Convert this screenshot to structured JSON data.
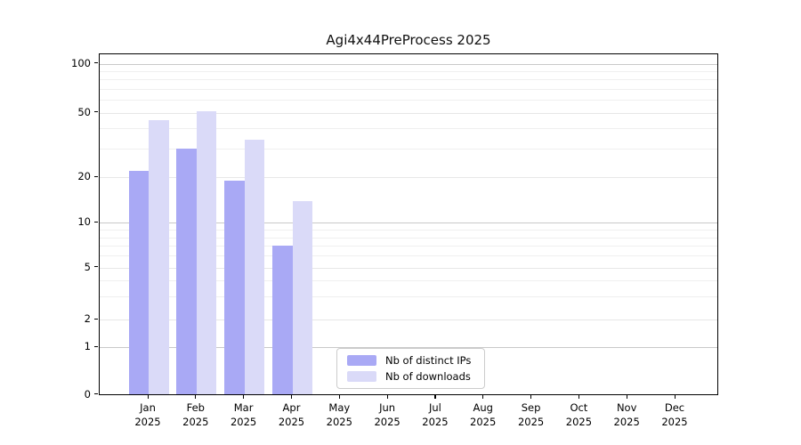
{
  "chart": {
    "title": "Agi4x44PreProcess 2025"
  },
  "chart_data": {
    "type": "bar",
    "title": "Agi4x44PreProcess 2025",
    "categories": [
      "Jan",
      "Feb",
      "Mar",
      "Apr",
      "May",
      "Jun",
      "Jul",
      "Aug",
      "Sep",
      "Oct",
      "Nov",
      "Dec"
    ],
    "year_label": "2025",
    "series": [
      {
        "name": "Nb of distinct IPs",
        "color": "#a9a9f5",
        "values": [
          22,
          30,
          19,
          7,
          0,
          0,
          0,
          0,
          0,
          0,
          0,
          0
        ]
      },
      {
        "name": "Nb of downloads",
        "color": "#dadaf8",
        "values": [
          45,
          51,
          34,
          14,
          0,
          0,
          0,
          0,
          0,
          0,
          0,
          0
        ]
      }
    ],
    "yticks": [
      0,
      1,
      2,
      5,
      10,
      20,
      50,
      100
    ],
    "minor_yticks": [
      3,
      4,
      6,
      7,
      8,
      9,
      30,
      40,
      60,
      70,
      80,
      90
    ],
    "y_scale": "symlog",
    "ylim": [
      0,
      115
    ],
    "xlabel": "",
    "ylabel": "",
    "grid": true,
    "legend_position": "inside-bottom-center",
    "colors": {
      "distinct_ips": "#a9a9f5",
      "downloads": "#dadaf8",
      "grid_major": "#c9c9c9",
      "grid_minor": "#efefef",
      "spine": "#000000"
    }
  }
}
